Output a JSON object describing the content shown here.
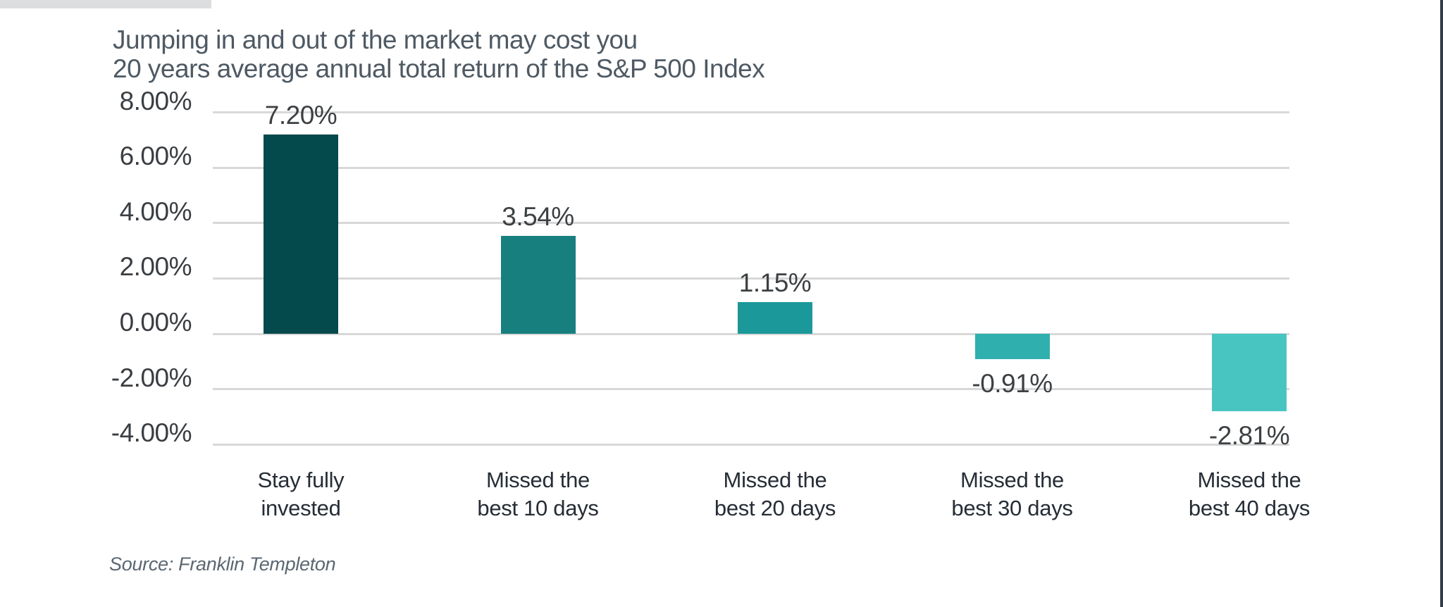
{
  "chart_data": {
    "type": "bar",
    "title": "Jumping in and out of the market may cost you",
    "subtitle": "20 years average annual total return of the S&P 500 Index",
    "categories": [
      "Stay fully\ninvested",
      "Missed the\nbest 10 days",
      "Missed the\nbest 20 days",
      "Missed the\nbest 30 days",
      "Missed the\nbest 40 days"
    ],
    "values": [
      7.2,
      3.54,
      1.15,
      -0.91,
      -2.81
    ],
    "value_labels": [
      "7.20%",
      "3.54%",
      "1.15%",
      "-0.91%",
      "-2.81%"
    ],
    "bar_colors": [
      "#04494b",
      "#17807f",
      "#1b9899",
      "#2fafae",
      "#49c5c1"
    ],
    "yticks": [
      {
        "value": 8,
        "label": "8.00%"
      },
      {
        "value": 6,
        "label": "6.00%"
      },
      {
        "value": 4,
        "label": "4.00%"
      },
      {
        "value": 2,
        "label": "2.00%"
      },
      {
        "value": 0,
        "label": "0.00%"
      },
      {
        "value": -2,
        "label": "-2.00%"
      },
      {
        "value": -4,
        "label": "-4.00%"
      }
    ],
    "ylim": [
      -4,
      8
    ],
    "xlabel": "",
    "ylabel": "",
    "grid": true,
    "legend": false,
    "gridline_color": "#d8d8d8",
    "source": "Source: Franklin Templeton"
  },
  "artifacts": {
    "top_band_color": "#dbdddf",
    "right_edge_color": "#333b46"
  }
}
